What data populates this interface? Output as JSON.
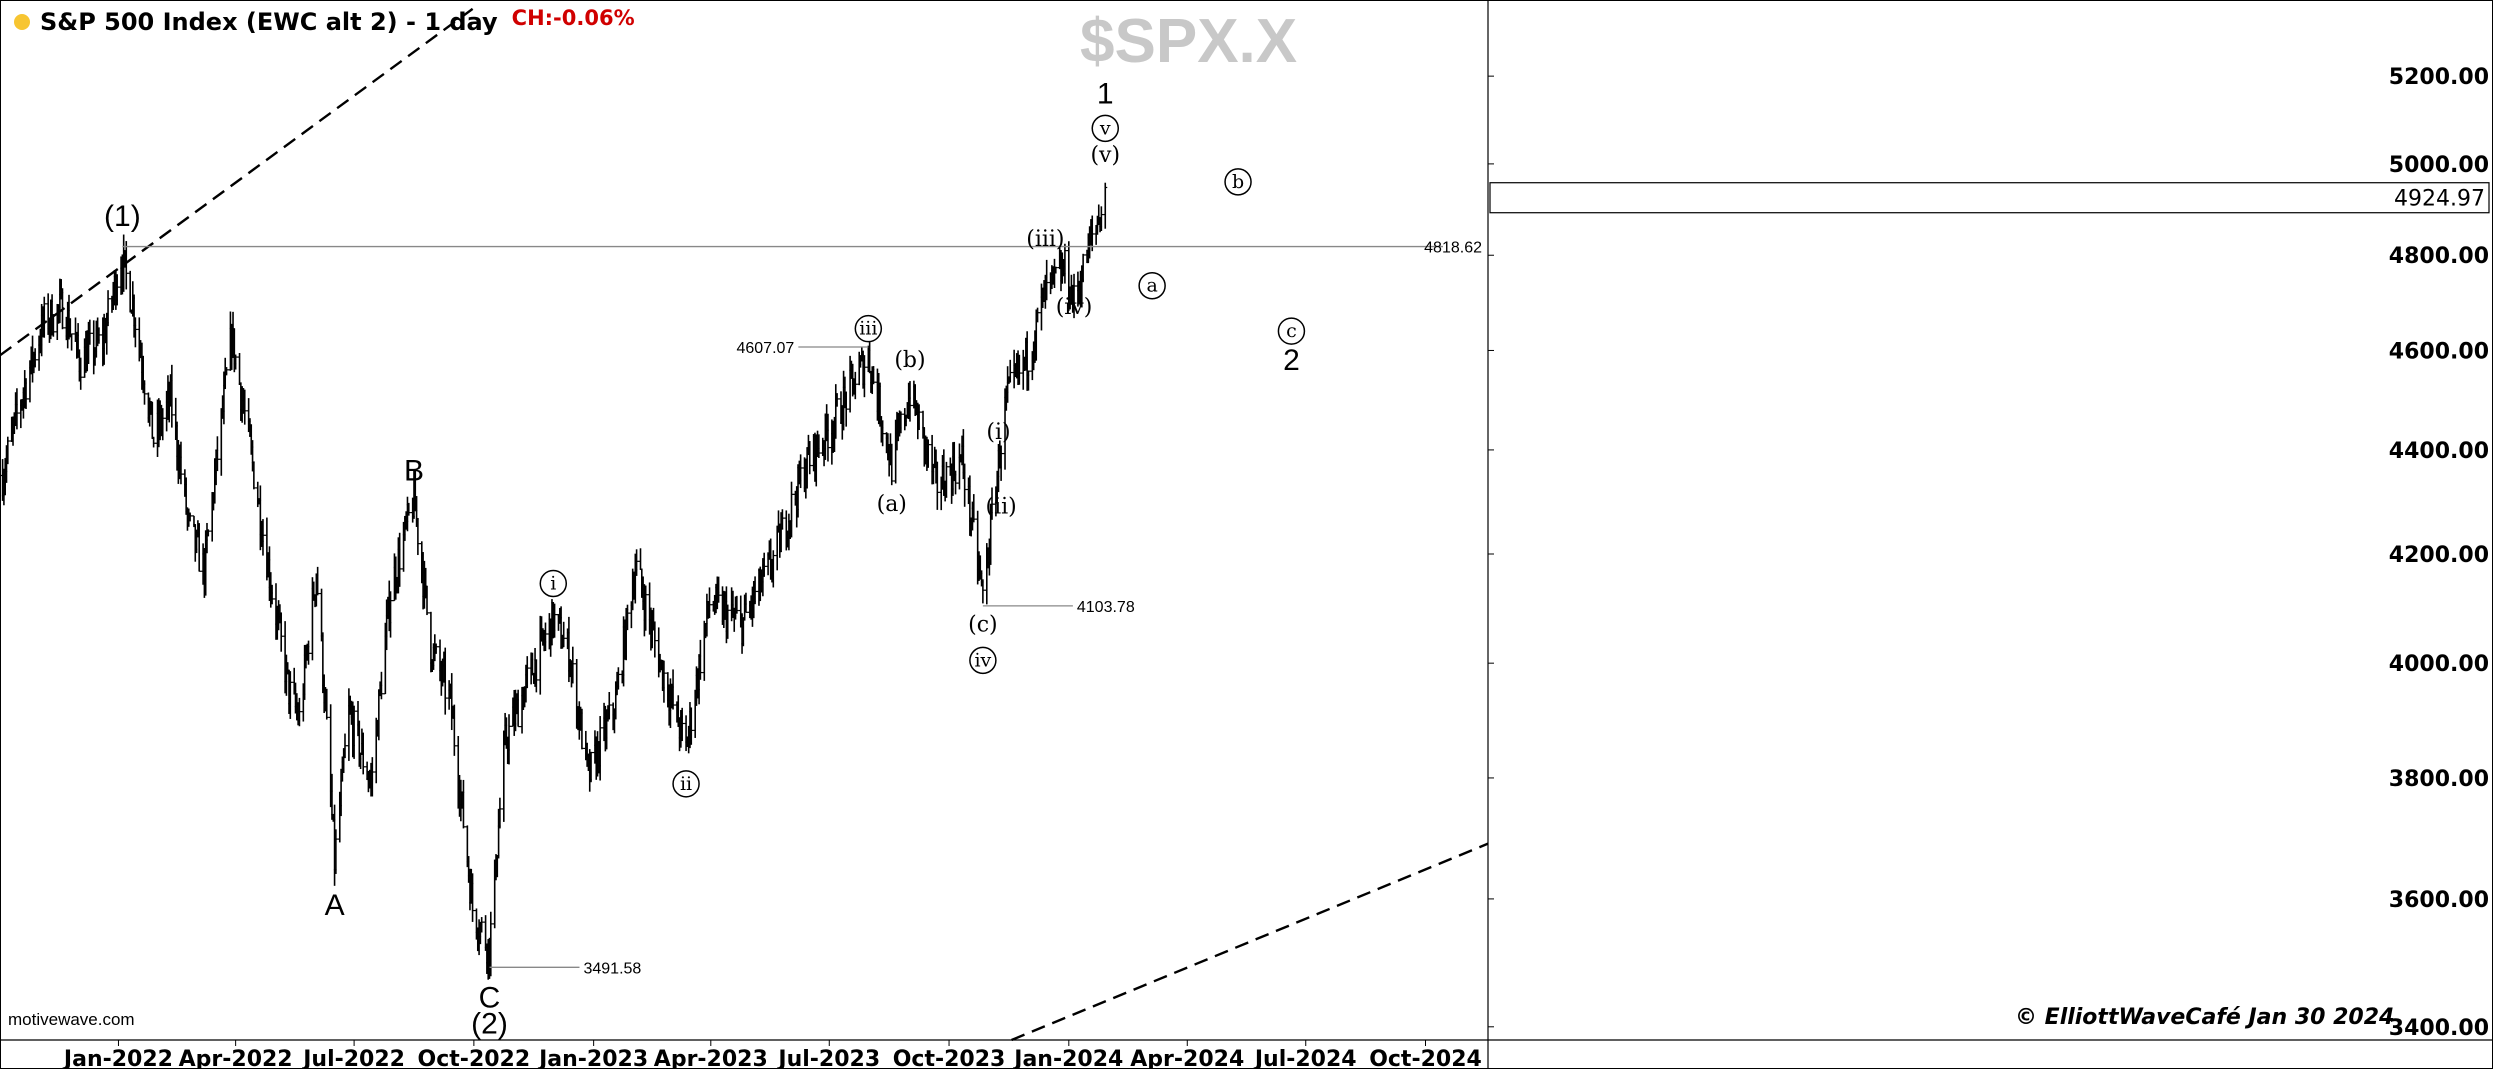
{
  "header": {
    "title": "S&P 500 Index (EWC alt 2) - 1 day",
    "change": "CH:-0.06%"
  },
  "watermark": "$SPX.X",
  "source": "motivewave.com",
  "copyright": "© ElliottWaveCafé Jan 30 2024",
  "colors": {
    "bars": "#000000",
    "price_box": "#ffffff",
    "change": "#d00000",
    "dot": "#f7c531"
  },
  "chart_data": {
    "type": "ohlc",
    "x_tick_labels": [
      "Jan-2022",
      "Apr-2022",
      "Jul-2022",
      "Oct-2022",
      "Jan-2023",
      "Apr-2023",
      "Jul-2023",
      "Oct-2023",
      "Jan-2024",
      "Apr-2024",
      "Jul-2024",
      "Oct-2024"
    ],
    "y_tick_labels": [
      "5200.00",
      "5000.00",
      "4800.00",
      "4600.00",
      "4400.00",
      "4200.00",
      "4000.00",
      "3800.00",
      "3600.00",
      "3400.00"
    ],
    "ylim": [
      3380,
      5380
    ],
    "xlim": [
      "2021-10-02",
      "2024-11-18"
    ],
    "y_scale": "log",
    "last_price": "4924.97",
    "close_path": [
      [
        "2021-10-04",
        4350
      ],
      [
        "2021-10-20",
        4520
      ],
      [
        "2021-11-05",
        4660
      ],
      [
        "2021-11-20",
        4690
      ],
      [
        "2021-12-02",
        4580
      ],
      [
        "2021-12-20",
        4620
      ],
      [
        "2022-01-03",
        4795
      ],
      [
        "2022-01-12",
        4700
      ],
      [
        "2022-01-28",
        4420
      ],
      [
        "2022-02-10",
        4500
      ],
      [
        "2022-02-24",
        4250
      ],
      [
        "2022-03-08",
        4170
      ],
      [
        "2022-03-29",
        4630
      ],
      [
        "2022-04-11",
        4420
      ],
      [
        "2022-04-29",
        4130
      ],
      [
        "2022-05-12",
        3950
      ],
      [
        "2022-05-20",
        3900
      ],
      [
        "2022-06-02",
        4170
      ],
      [
        "2022-06-16",
        3660
      ],
      [
        "2022-06-27",
        3910
      ],
      [
        "2022-07-14",
        3790
      ],
      [
        "2022-07-29",
        4130
      ],
      [
        "2022-08-16",
        4305
      ],
      [
        "2022-08-29",
        4030
      ],
      [
        "2022-09-13",
        3930
      ],
      [
        "2022-09-30",
        3585
      ],
      [
        "2022-10-13",
        3520
      ],
      [
        "2022-10-25",
        3860
      ],
      [
        "2022-11-10",
        3960
      ],
      [
        "2022-12-01",
        4080
      ],
      [
        "2022-12-13",
        4020
      ],
      [
        "2022-12-28",
        3800
      ],
      [
        "2023-01-18",
        3930
      ],
      [
        "2023-02-02",
        4180
      ],
      [
        "2023-02-21",
        4000
      ],
      [
        "2023-03-13",
        3850
      ],
      [
        "2023-03-31",
        4110
      ],
      [
        "2023-04-25",
        4070
      ],
      [
        "2023-05-19",
        4190
      ],
      [
        "2023-06-13",
        4370
      ],
      [
        "2023-07-03",
        4450
      ],
      [
        "2023-07-31",
        4590
      ],
      [
        "2023-08-18",
        4370
      ],
      [
        "2023-09-01",
        4515
      ],
      [
        "2023-09-21",
        4330
      ],
      [
        "2023-10-11",
        4380
      ],
      [
        "2023-10-27",
        4120
      ],
      [
        "2023-11-14",
        4500
      ],
      [
        "2023-12-01",
        4590
      ],
      [
        "2023-12-14",
        4720
      ],
      [
        "2023-12-29",
        4770
      ],
      [
        "2024-01-05",
        4700
      ],
      [
        "2024-01-19",
        4840
      ],
      [
        "2024-01-29",
        4925
      ]
    ],
    "price_labels": [
      {
        "text": "4818.62",
        "date": "2022-01-04",
        "price": 4818.62
      },
      {
        "text": "4607.07",
        "date": "2023-07-31",
        "price": 4607.07
      },
      {
        "text": "4103.78",
        "date": "2023-10-27",
        "price": 4103.78
      },
      {
        "text": "3491.58",
        "date": "2022-10-13",
        "price": 3491.58
      }
    ],
    "wave_labels": [
      {
        "text": "(1)",
        "style": "plain",
        "date": "2022-01-04",
        "price": 4885
      },
      {
        "text": "A",
        "style": "plain",
        "date": "2022-06-16",
        "price": 3590
      },
      {
        "text": "B",
        "style": "plain",
        "date": "2022-08-16",
        "price": 4360
      },
      {
        "text": "C",
        "style": "plain",
        "date": "2022-10-13",
        "price": 3445
      },
      {
        "text": "(2)",
        "style": "plain",
        "date": "2022-10-13",
        "price": 3405
      },
      {
        "text": "i",
        "style": "circled",
        "date": "2022-12-01",
        "price": 4145
      },
      {
        "text": "ii",
        "style": "circled",
        "date": "2023-03-13",
        "price": 3790
      },
      {
        "text": "iii",
        "style": "circled",
        "date": "2023-07-31",
        "price": 4645
      },
      {
        "text": "(a)",
        "style": "serif",
        "date": "2023-08-18",
        "price": 4295
      },
      {
        "text": "(b)",
        "style": "serif",
        "date": "2023-09-01",
        "price": 4580
      },
      {
        "text": "(c)",
        "style": "serif",
        "date": "2023-10-27",
        "price": 4070
      },
      {
        "text": "iv",
        "style": "circled",
        "date": "2023-10-27",
        "price": 4005
      },
      {
        "text": "(i)",
        "style": "serif",
        "date": "2023-11-08",
        "price": 4435
      },
      {
        "text": "(ii)",
        "style": "serif",
        "date": "2023-11-10",
        "price": 4290
      },
      {
        "text": "(iii)",
        "style": "serif",
        "date": "2023-12-14",
        "price": 4835
      },
      {
        "text": "(iv)",
        "style": "serif",
        "date": "2024-01-05",
        "price": 4690
      },
      {
        "text": "(v)",
        "style": "serif",
        "date": "2024-01-29",
        "price": 5020
      },
      {
        "text": "v",
        "style": "circled",
        "date": "2024-01-29",
        "price": 5080
      },
      {
        "text": "1",
        "style": "plain",
        "date": "2024-01-29",
        "price": 5160
      },
      {
        "text": "a",
        "style": "circled",
        "date": "2024-03-05",
        "price": 4735
      },
      {
        "text": "b",
        "style": "circled",
        "date": "2024-05-10",
        "price": 4960
      },
      {
        "text": "c",
        "style": "circled",
        "date": "2024-06-20",
        "price": 4640
      },
      {
        "text": "2",
        "style": "plain",
        "date": "2024-06-20",
        "price": 4580
      }
    ],
    "trendlines": [
      {
        "style": "dashed",
        "from": [
          "2021-10-02",
          4590
        ],
        "to": [
          "2022-10-05",
          5370
        ]
      },
      {
        "style": "dashed",
        "from": [
          "2023-11-18",
          3380
        ],
        "to": [
          "2024-11-18",
          3690
        ]
      }
    ]
  }
}
